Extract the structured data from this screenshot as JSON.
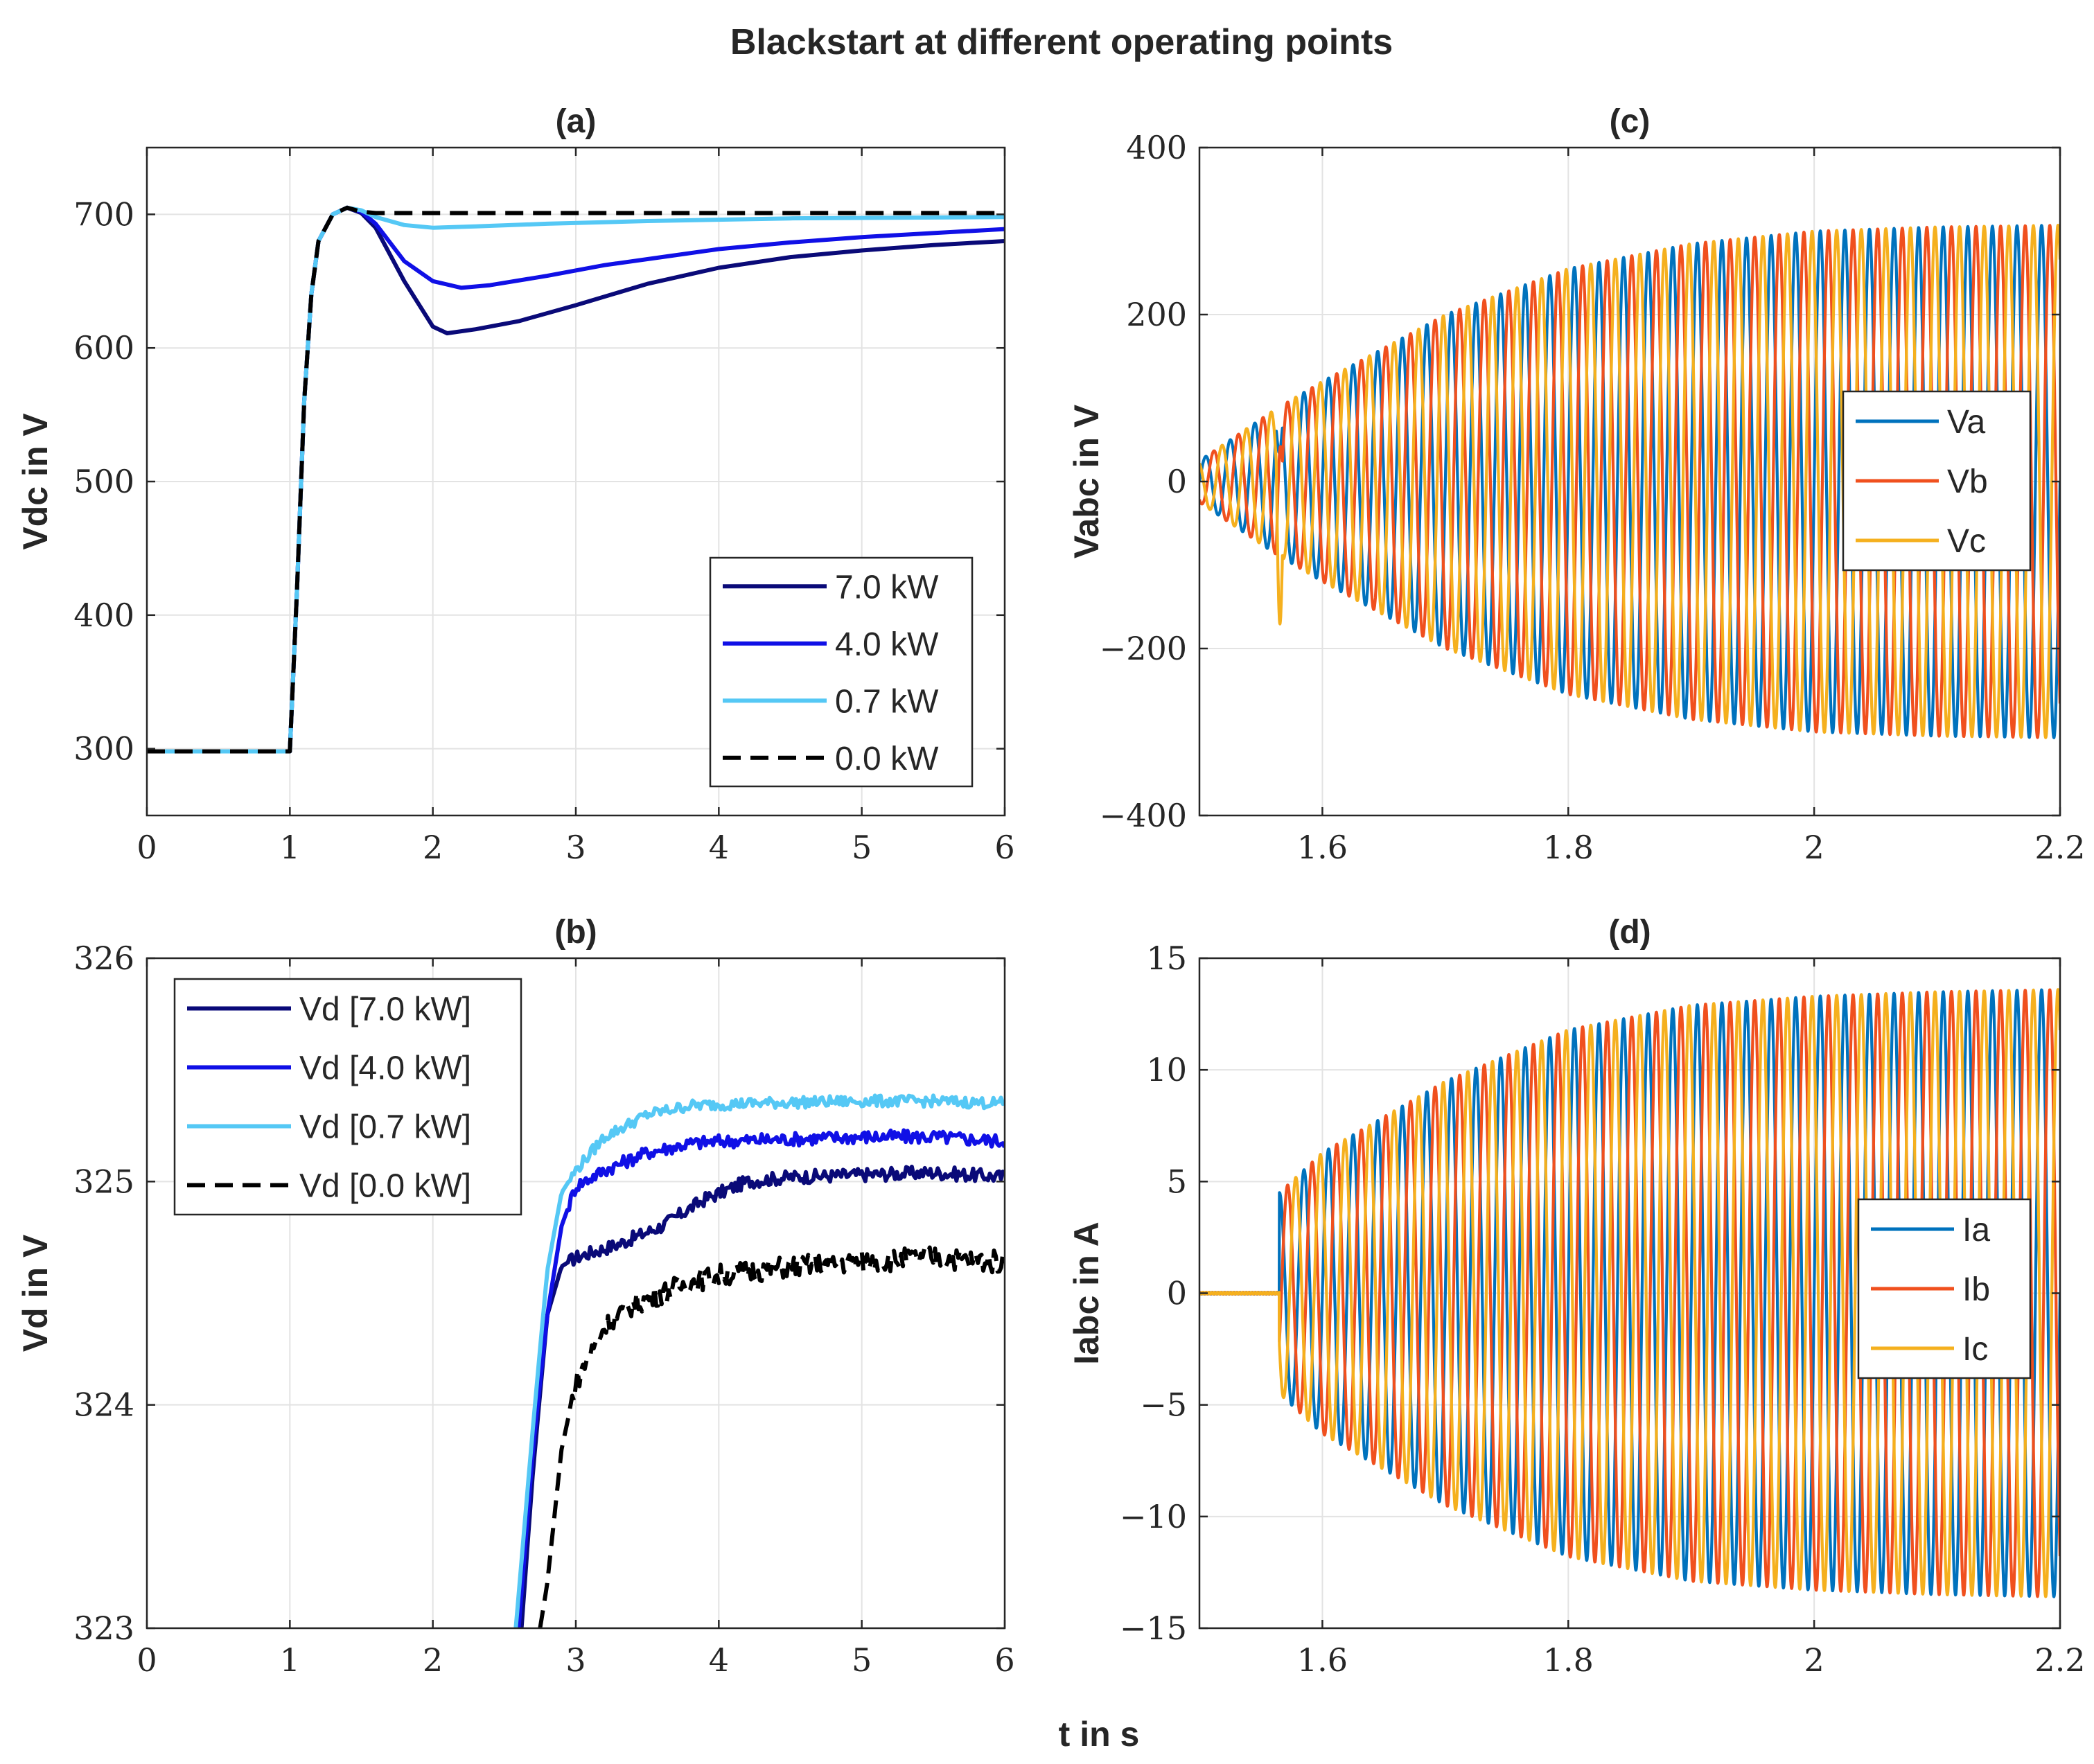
{
  "figure": {
    "title": "Blackstart at different operating points",
    "xlabel": "t in s"
  },
  "chart_data": [
    {
      "id": "a",
      "type": "line",
      "title": "(a)",
      "xlabel": "",
      "ylabel": "Vdc in V",
      "xlim": [
        0,
        6
      ],
      "ylim": [
        250,
        750
      ],
      "xticks": [
        0,
        1,
        2,
        3,
        4,
        5,
        6
      ],
      "yticks": [
        300,
        400,
        500,
        600,
        700
      ],
      "grid": true,
      "legend": "bottom-right",
      "series": [
        {
          "name": "7.0 kW",
          "color": "#0a0a78",
          "dash": "",
          "x": [
            0,
            1.0,
            1.05,
            1.1,
            1.15,
            1.2,
            1.3,
            1.4,
            1.5,
            1.6,
            1.8,
            2.0,
            2.1,
            2.3,
            2.6,
            3.0,
            3.5,
            4.0,
            4.5,
            5.0,
            5.5,
            6.0
          ],
          "y": [
            298,
            298,
            420,
            560,
            640,
            680,
            700,
            705,
            701,
            690,
            650,
            616,
            611,
            614,
            620,
            632,
            648,
            660,
            668,
            673,
            677,
            680
          ]
        },
        {
          "name": "4.0 kW",
          "color": "#1010e6",
          "dash": "",
          "x": [
            0,
            1.0,
            1.05,
            1.1,
            1.15,
            1.2,
            1.3,
            1.4,
            1.5,
            1.6,
            1.8,
            2.0,
            2.2,
            2.4,
            2.8,
            3.2,
            3.6,
            4.0,
            4.5,
            5.0,
            5.5,
            6.0
          ],
          "y": [
            298,
            298,
            420,
            560,
            640,
            680,
            700,
            705,
            702,
            693,
            665,
            650,
            645,
            647,
            654,
            662,
            668,
            674,
            679,
            683,
            686,
            689
          ]
        },
        {
          "name": "0.7 kW",
          "color": "#55c8f5",
          "dash": "",
          "x": [
            0,
            1.0,
            1.05,
            1.1,
            1.15,
            1.2,
            1.3,
            1.4,
            1.5,
            1.6,
            1.8,
            2.0,
            2.3,
            2.8,
            3.5,
            4.5,
            6.0
          ],
          "y": [
            298,
            298,
            420,
            560,
            640,
            680,
            700,
            705,
            703,
            698,
            692,
            690,
            691,
            693,
            695,
            697,
            698
          ]
        },
        {
          "name": "0.0 kW",
          "color": "#000000",
          "dash": "dashed",
          "x": [
            0,
            1.0,
            1.05,
            1.1,
            1.15,
            1.2,
            1.3,
            1.4,
            1.5,
            1.6,
            2.0,
            3.0,
            4.0,
            5.0,
            6.0
          ],
          "y": [
            298,
            298,
            420,
            560,
            640,
            680,
            700,
            705,
            702,
            701,
            701,
            701,
            701,
            701,
            701
          ]
        }
      ]
    },
    {
      "id": "b",
      "type": "line",
      "title": "(b)",
      "xlabel": "",
      "ylabel": "Vd in V",
      "xlim": [
        0,
        6
      ],
      "ylim": [
        323,
        326
      ],
      "xticks": [
        0,
        1,
        2,
        3,
        4,
        5,
        6
      ],
      "yticks": [
        323,
        324,
        325,
        326
      ],
      "grid": true,
      "legend": "top-left",
      "series": [
        {
          "name": "Vd [7.0 kW]",
          "color": "#0a0a78",
          "dash": "",
          "noise": 0.03,
          "x": [
            2.62,
            2.7,
            2.8,
            2.9,
            3.0,
            3.3,
            3.6,
            3.9,
            4.2,
            4.5,
            5.0,
            5.5,
            6.0
          ],
          "y": [
            323.0,
            323.7,
            324.4,
            324.62,
            324.66,
            324.72,
            324.8,
            324.92,
            325.0,
            325.02,
            325.03,
            325.04,
            325.02
          ]
        },
        {
          "name": "Vd [4.0 kW]",
          "color": "#1010e6",
          "dash": "",
          "noise": 0.03,
          "x": [
            2.6,
            2.7,
            2.8,
            2.9,
            3.0,
            3.2,
            3.5,
            3.8,
            4.0,
            4.5,
            5.0,
            5.5,
            6.0
          ],
          "y": [
            323.0,
            323.8,
            324.4,
            324.8,
            324.98,
            325.05,
            325.13,
            325.17,
            325.18,
            325.19,
            325.2,
            325.2,
            325.18
          ]
        },
        {
          "name": "Vd [0.7 kW]",
          "color": "#55c8f5",
          "dash": "",
          "noise": 0.025,
          "x": [
            2.58,
            2.7,
            2.8,
            2.9,
            3.0,
            3.2,
            3.5,
            3.8,
            4.2,
            5.0,
            5.5,
            6.0
          ],
          "y": [
            323.0,
            323.9,
            324.6,
            324.95,
            325.05,
            325.2,
            325.3,
            325.34,
            325.35,
            325.36,
            325.36,
            325.35
          ]
        },
        {
          "name": "Vd [0.0 kW]",
          "color": "#000000",
          "dash": "dashed",
          "noise": 0.05,
          "x": [
            2.75,
            2.8,
            2.9,
            3.0,
            3.2,
            3.4,
            3.6,
            3.8,
            4.0,
            4.5,
            5.0,
            5.5,
            6.0
          ],
          "y": [
            323.0,
            323.2,
            323.8,
            324.1,
            324.35,
            324.45,
            324.5,
            324.55,
            324.58,
            324.62,
            324.64,
            324.66,
            324.64
          ]
        }
      ]
    },
    {
      "id": "c",
      "type": "line",
      "title": "(c)",
      "xlabel": "",
      "ylabel": "Vabc in V",
      "xlim": [
        1.5,
        2.2
      ],
      "ylim": [
        -400,
        400
      ],
      "xticks": [
        1.6,
        1.8,
        2.0,
        2.2
      ],
      "xticklabels": [
        "1.6",
        "1.8",
        "2",
        "2.2"
      ],
      "yticks": [
        -400,
        -200,
        0,
        200,
        400
      ],
      "yticklabels": [
        "−400",
        "−200",
        "0",
        "200",
        "400"
      ],
      "grid": true,
      "legend": "top-right",
      "waveform": {
        "frequency_hz": 50,
        "t_start": 1.5,
        "t_end": 2.2,
        "amplitude_points": [
          [
            1.5,
            25
          ],
          [
            1.56,
            85
          ],
          [
            1.6,
            120
          ],
          [
            1.7,
            200
          ],
          [
            1.8,
            255
          ],
          [
            1.9,
            285
          ],
          [
            2.0,
            300
          ],
          [
            2.1,
            305
          ],
          [
            2.2,
            307
          ]
        ],
        "transient_time": 1.565
      },
      "series": [
        {
          "name": "Va",
          "color": "#0072bd",
          "phase_deg": 0
        },
        {
          "name": "Vb",
          "color": "#f0501e",
          "phase_deg": -120
        },
        {
          "name": "Vc",
          "color": "#f5b01e",
          "phase_deg": 120
        }
      ]
    },
    {
      "id": "d",
      "type": "line",
      "title": "(d)",
      "xlabel": "",
      "ylabel": "Iabc in A",
      "xlim": [
        1.5,
        2.2
      ],
      "ylim": [
        -15,
        15
      ],
      "xticks": [
        1.6,
        1.8,
        2.0,
        2.2
      ],
      "xticklabels": [
        "1.6",
        "1.8",
        "2",
        "2.2"
      ],
      "yticks": [
        -15,
        -10,
        -5,
        0,
        5,
        10,
        15
      ],
      "yticklabels": [
        "−15",
        "−10",
        "−5",
        "0",
        "5",
        "10",
        "15"
      ],
      "grid": true,
      "legend": "right",
      "waveform": {
        "frequency_hz": 50,
        "t_start": 1.5,
        "t_end": 2.2,
        "zero_until": 1.565,
        "amplitude_points": [
          [
            1.565,
            4.5
          ],
          [
            1.6,
            6.3
          ],
          [
            1.7,
            9.5
          ],
          [
            1.8,
            11.8
          ],
          [
            1.9,
            12.9
          ],
          [
            2.0,
            13.3
          ],
          [
            2.1,
            13.5
          ],
          [
            2.2,
            13.6
          ]
        ]
      },
      "series": [
        {
          "name": "Ia",
          "color": "#0072bd",
          "phase_deg": 0
        },
        {
          "name": "Ib",
          "color": "#f0501e",
          "phase_deg": -120
        },
        {
          "name": "Ic",
          "color": "#f5b01e",
          "phase_deg": 120
        }
      ]
    }
  ]
}
